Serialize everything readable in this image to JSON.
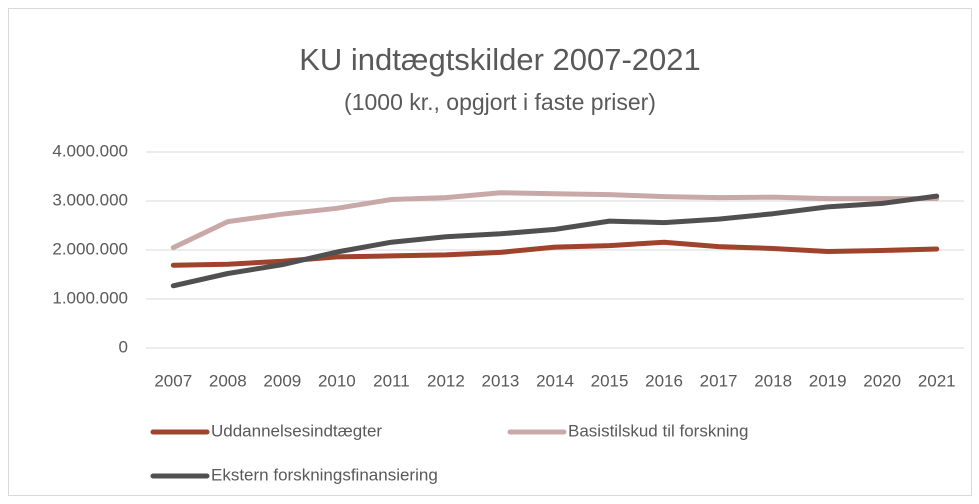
{
  "chart_data": {
    "type": "line",
    "title": "KU indtægtskilder 2007-2021",
    "subtitle": "(1000 kr., opgjort i faste priser)",
    "categories": [
      "2007",
      "2008",
      "2009",
      "2010",
      "2011",
      "2012",
      "2013",
      "2014",
      "2015",
      "2016",
      "2017",
      "2018",
      "2019",
      "2020",
      "2021"
    ],
    "series": [
      {
        "name": "Uddannelsesindtægter",
        "color": "#a0432d",
        "values": [
          1690000,
          1710000,
          1770000,
          1860000,
          1880000,
          1900000,
          1950000,
          2060000,
          2090000,
          2160000,
          2070000,
          2030000,
          1970000,
          1990000,
          2020000
        ]
      },
      {
        "name": "Basistilskud til forskning",
        "color": "#c9a9a8",
        "values": [
          2050000,
          2580000,
          2730000,
          2850000,
          3030000,
          3070000,
          3170000,
          3150000,
          3130000,
          3090000,
          3070000,
          3080000,
          3050000,
          3050000,
          3050000
        ]
      },
      {
        "name": "Ekstern forskningsfinansiering",
        "color": "#505050",
        "values": [
          1270000,
          1520000,
          1700000,
          1960000,
          2160000,
          2270000,
          2330000,
          2420000,
          2590000,
          2560000,
          2630000,
          2740000,
          2880000,
          2950000,
          3100000
        ]
      }
    ],
    "ylim": [
      0,
      4000000
    ],
    "yticks": [
      0,
      {
        "value": 1000000,
        "label": "1.000.000"
      },
      {
        "value": 2000000,
        "label": "2.000.000"
      },
      {
        "value": 3000000,
        "label": "3.000.000"
      },
      {
        "value": 4000000,
        "label": "4.000.000"
      }
    ],
    "grid": true,
    "legend": "bottom"
  }
}
